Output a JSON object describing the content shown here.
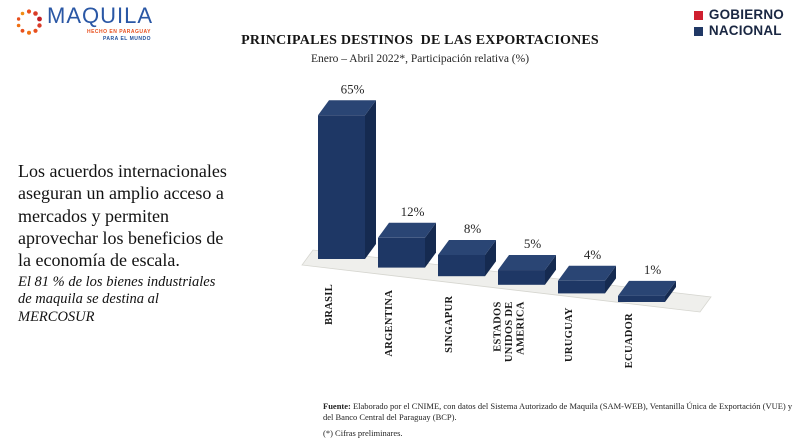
{
  "header": {
    "maquila_logo": {
      "brand": "MAQUILA",
      "tagline_line1": "HECHO EN PARAGUAY",
      "tagline_line2": "PARA EL MUNDO",
      "brand_color": "#2a57a5",
      "accent_color": "#e8501e"
    },
    "gobierno_logo": {
      "line1": "GOBIERNO",
      "line2": "NACIONAL",
      "square1_color": "#cf1f2f",
      "square2_color": "#203865"
    }
  },
  "chart_data": {
    "type": "bar",
    "style": "3d",
    "title": "PRINCIPALES DESTINOS  DE LAS EXPORTACIONES",
    "subtitle": "Enero – Abril 2022*, Participación relativa (%)",
    "categories": [
      "BRASIL",
      "ARGENTINA",
      "SINGAPUR",
      "ESTADOS UNIDOS DE AMERICA",
      "URUGUAY",
      "ECUADOR"
    ],
    "category_lines": [
      [
        "BRASIL"
      ],
      [
        "ARGENTINA"
      ],
      [
        "SINGAPUR"
      ],
      [
        "ESTADOS",
        "UNIDOS DE",
        "AMERICA"
      ],
      [
        "URUGUAY"
      ],
      [
        "ECUADOR"
      ]
    ],
    "values": [
      65,
      12,
      8,
      5,
      4,
      1
    ],
    "value_labels": [
      "65%",
      "12%",
      "8%",
      "5%",
      "4%",
      "1%"
    ],
    "unit": "%",
    "xlabel": "",
    "ylabel": "Participación relativa (%)",
    "ylim": [
      0,
      65
    ],
    "grid": false,
    "legend": "none",
    "bar_colors": {
      "front": "#1e3765",
      "top": "#2a4574",
      "side": "#152a50"
    },
    "floor_color": "#efefec"
  },
  "commentary": {
    "paragraph": "Los acuerdos internacionales aseguran un amplio acceso a mercados y permiten aprovechar los beneficios de la economía de escala.",
    "emphasis": "El 81 % de los bienes industriales de maquila se destina al MERCOSUR"
  },
  "footer": {
    "source_label": "Fuente:",
    "source_text": " Elaborado por el CNIME, con datos del Sistema Autorizado de Maquila (SAM-WEB), Ventanilla Única de Exportación (VUE) y del Banco Central del Paraguay (BCP).",
    "note": "(*) Cifras preliminares."
  }
}
